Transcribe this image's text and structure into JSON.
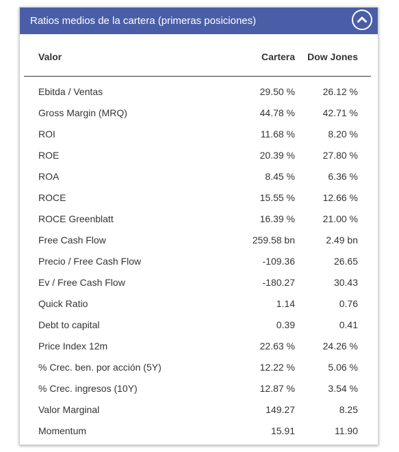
{
  "panel": {
    "title": "Ratios medios de la cartera (primeras posiciones)",
    "collapse_icon": "chevron-up-icon",
    "header_color": "#4a5ea8"
  },
  "table": {
    "columns": [
      "Valor",
      "Cartera",
      "Dow Jones"
    ],
    "rows": [
      {
        "label": "Ebitda / Ventas",
        "cartera": "29.50 %",
        "dow": "26.12 %"
      },
      {
        "label": "Gross Margin (MRQ)",
        "cartera": "44.78 %",
        "dow": "42.71 %"
      },
      {
        "label": "ROI",
        "cartera": "11.68 %",
        "dow": "8.20 %"
      },
      {
        "label": "ROE",
        "cartera": "20.39 %",
        "dow": "27.80 %"
      },
      {
        "label": "ROA",
        "cartera": "8.45 %",
        "dow": "6.36 %"
      },
      {
        "label": "ROCE",
        "cartera": "15.55 %",
        "dow": "12.66 %"
      },
      {
        "label": "ROCE Greenblatt",
        "cartera": "16.39 %",
        "dow": "21.00 %"
      },
      {
        "label": "Free Cash Flow",
        "cartera": "259.58 bn",
        "dow": "2.49 bn"
      },
      {
        "label": "Precio / Free Cash Flow",
        "cartera": "-109.36",
        "dow": "26.65"
      },
      {
        "label": "Ev / Free Cash Flow",
        "cartera": "-180.27",
        "dow": "30.43"
      },
      {
        "label": "Quick Ratio",
        "cartera": "1.14",
        "dow": "0.76"
      },
      {
        "label": "Debt to capital",
        "cartera": "0.39",
        "dow": "0.41"
      },
      {
        "label": "Price Index 12m",
        "cartera": "22.63 %",
        "dow": "24.26 %"
      },
      {
        "label": "% Crec. ben. por acción (5Y)",
        "cartera": "12.22 %",
        "dow": "5.06 %"
      },
      {
        "label": "% Crec. ingresos (10Y)",
        "cartera": "12.87 %",
        "dow": "3.54 %"
      },
      {
        "label": "Valor Marginal",
        "cartera": "149.27",
        "dow": "8.25"
      },
      {
        "label": "Momentum",
        "cartera": "15.91",
        "dow": "11.90"
      }
    ]
  }
}
